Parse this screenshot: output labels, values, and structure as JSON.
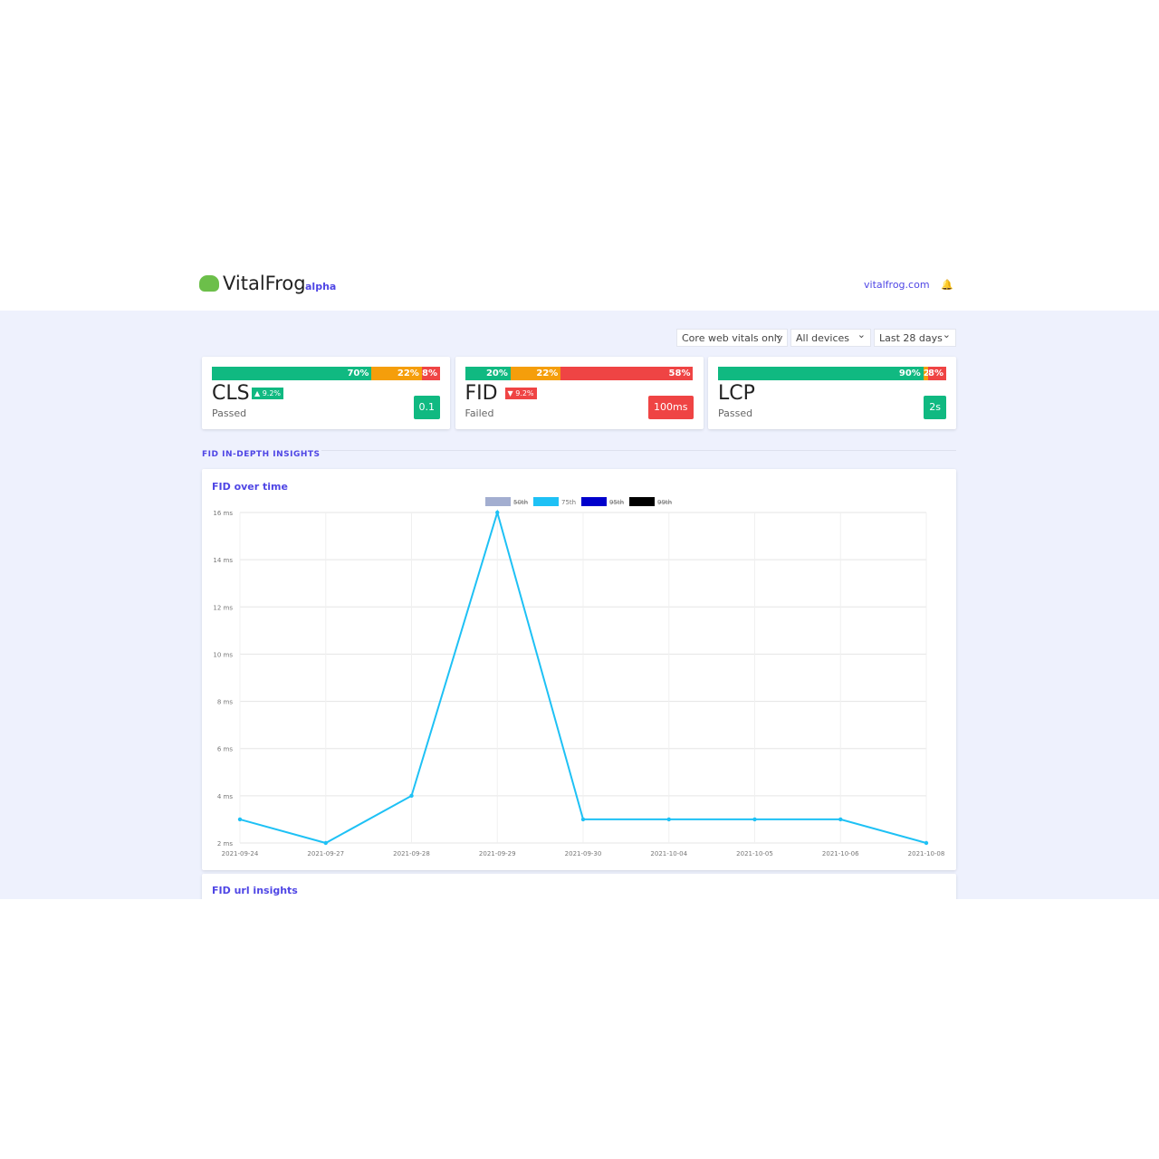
{
  "header": {
    "brand": "VitalFrog",
    "badge": "alpha",
    "link": "vitalfrog.com"
  },
  "filters": [
    "Core web vitals only",
    "All devices",
    "Last 28 days"
  ],
  "cards": [
    {
      "name": "CLS",
      "change": "▲ 9.2%",
      "status": "Passed",
      "value": "0.1",
      "bar": {
        "values": [
          70,
          22,
          8
        ],
        "value_labels": [
          "70%",
          "22%",
          "8%"
        ]
      }
    },
    {
      "name": "FID",
      "change": "▼ 9.2%",
      "status": "Failed",
      "value": "100ms",
      "bar": {
        "values": [
          20,
          22,
          58
        ],
        "value_labels": [
          "20%",
          "22%",
          "58%"
        ]
      }
    },
    {
      "name": "LCP",
      "change": null,
      "status": "Passed",
      "value": "2s",
      "bar": {
        "values": [
          90,
          2,
          8
        ],
        "value_labels": [
          "90%",
          "2%",
          "8%"
        ]
      }
    }
  ],
  "bar_colors": [
    "#10b981",
    "#f59e0b",
    "#ef4444"
  ],
  "section_title": "FID IN-DEPTH INSIGHTS",
  "chart_data": {
    "type": "line",
    "title": "FID over time",
    "x": [
      "2021-09-24",
      "2021-09-27",
      "2021-09-28",
      "2021-09-29",
      "2021-09-30",
      "2021-10-04",
      "2021-10-05",
      "2021-10-06",
      "2021-10-08"
    ],
    "series": [
      {
        "name": "50th",
        "color": "#a3aed0",
        "hidden": true,
        "values": [
          null,
          null,
          null,
          null,
          null,
          null,
          null,
          null,
          null
        ]
      },
      {
        "name": "75th",
        "color": "#1ec1f5",
        "hidden": false,
        "values": [
          3,
          2,
          4,
          16,
          3,
          3,
          3,
          3,
          2
        ]
      },
      {
        "name": "95th",
        "color": "#0000cc",
        "hidden": true,
        "values": [
          null,
          null,
          null,
          null,
          null,
          null,
          null,
          null,
          null
        ]
      },
      {
        "name": "99th",
        "color": "#000000",
        "hidden": true,
        "values": [
          null,
          null,
          null,
          null,
          null,
          null,
          null,
          null,
          null
        ]
      }
    ],
    "ylim": [
      2,
      16
    ],
    "yticks": [
      {
        "value": 2,
        "label": "2 ms"
      },
      {
        "value": 4,
        "label": "4 ms"
      },
      {
        "value": 6,
        "label": "6 ms"
      },
      {
        "value": 8,
        "label": "8 ms"
      },
      {
        "value": 10,
        "label": "10 ms"
      },
      {
        "value": 12,
        "label": "12 ms"
      },
      {
        "value": 14,
        "label": "14 ms"
      },
      {
        "value": 16,
        "label": "16 ms"
      }
    ],
    "grid": true
  },
  "next_card_title": "FID url insights"
}
